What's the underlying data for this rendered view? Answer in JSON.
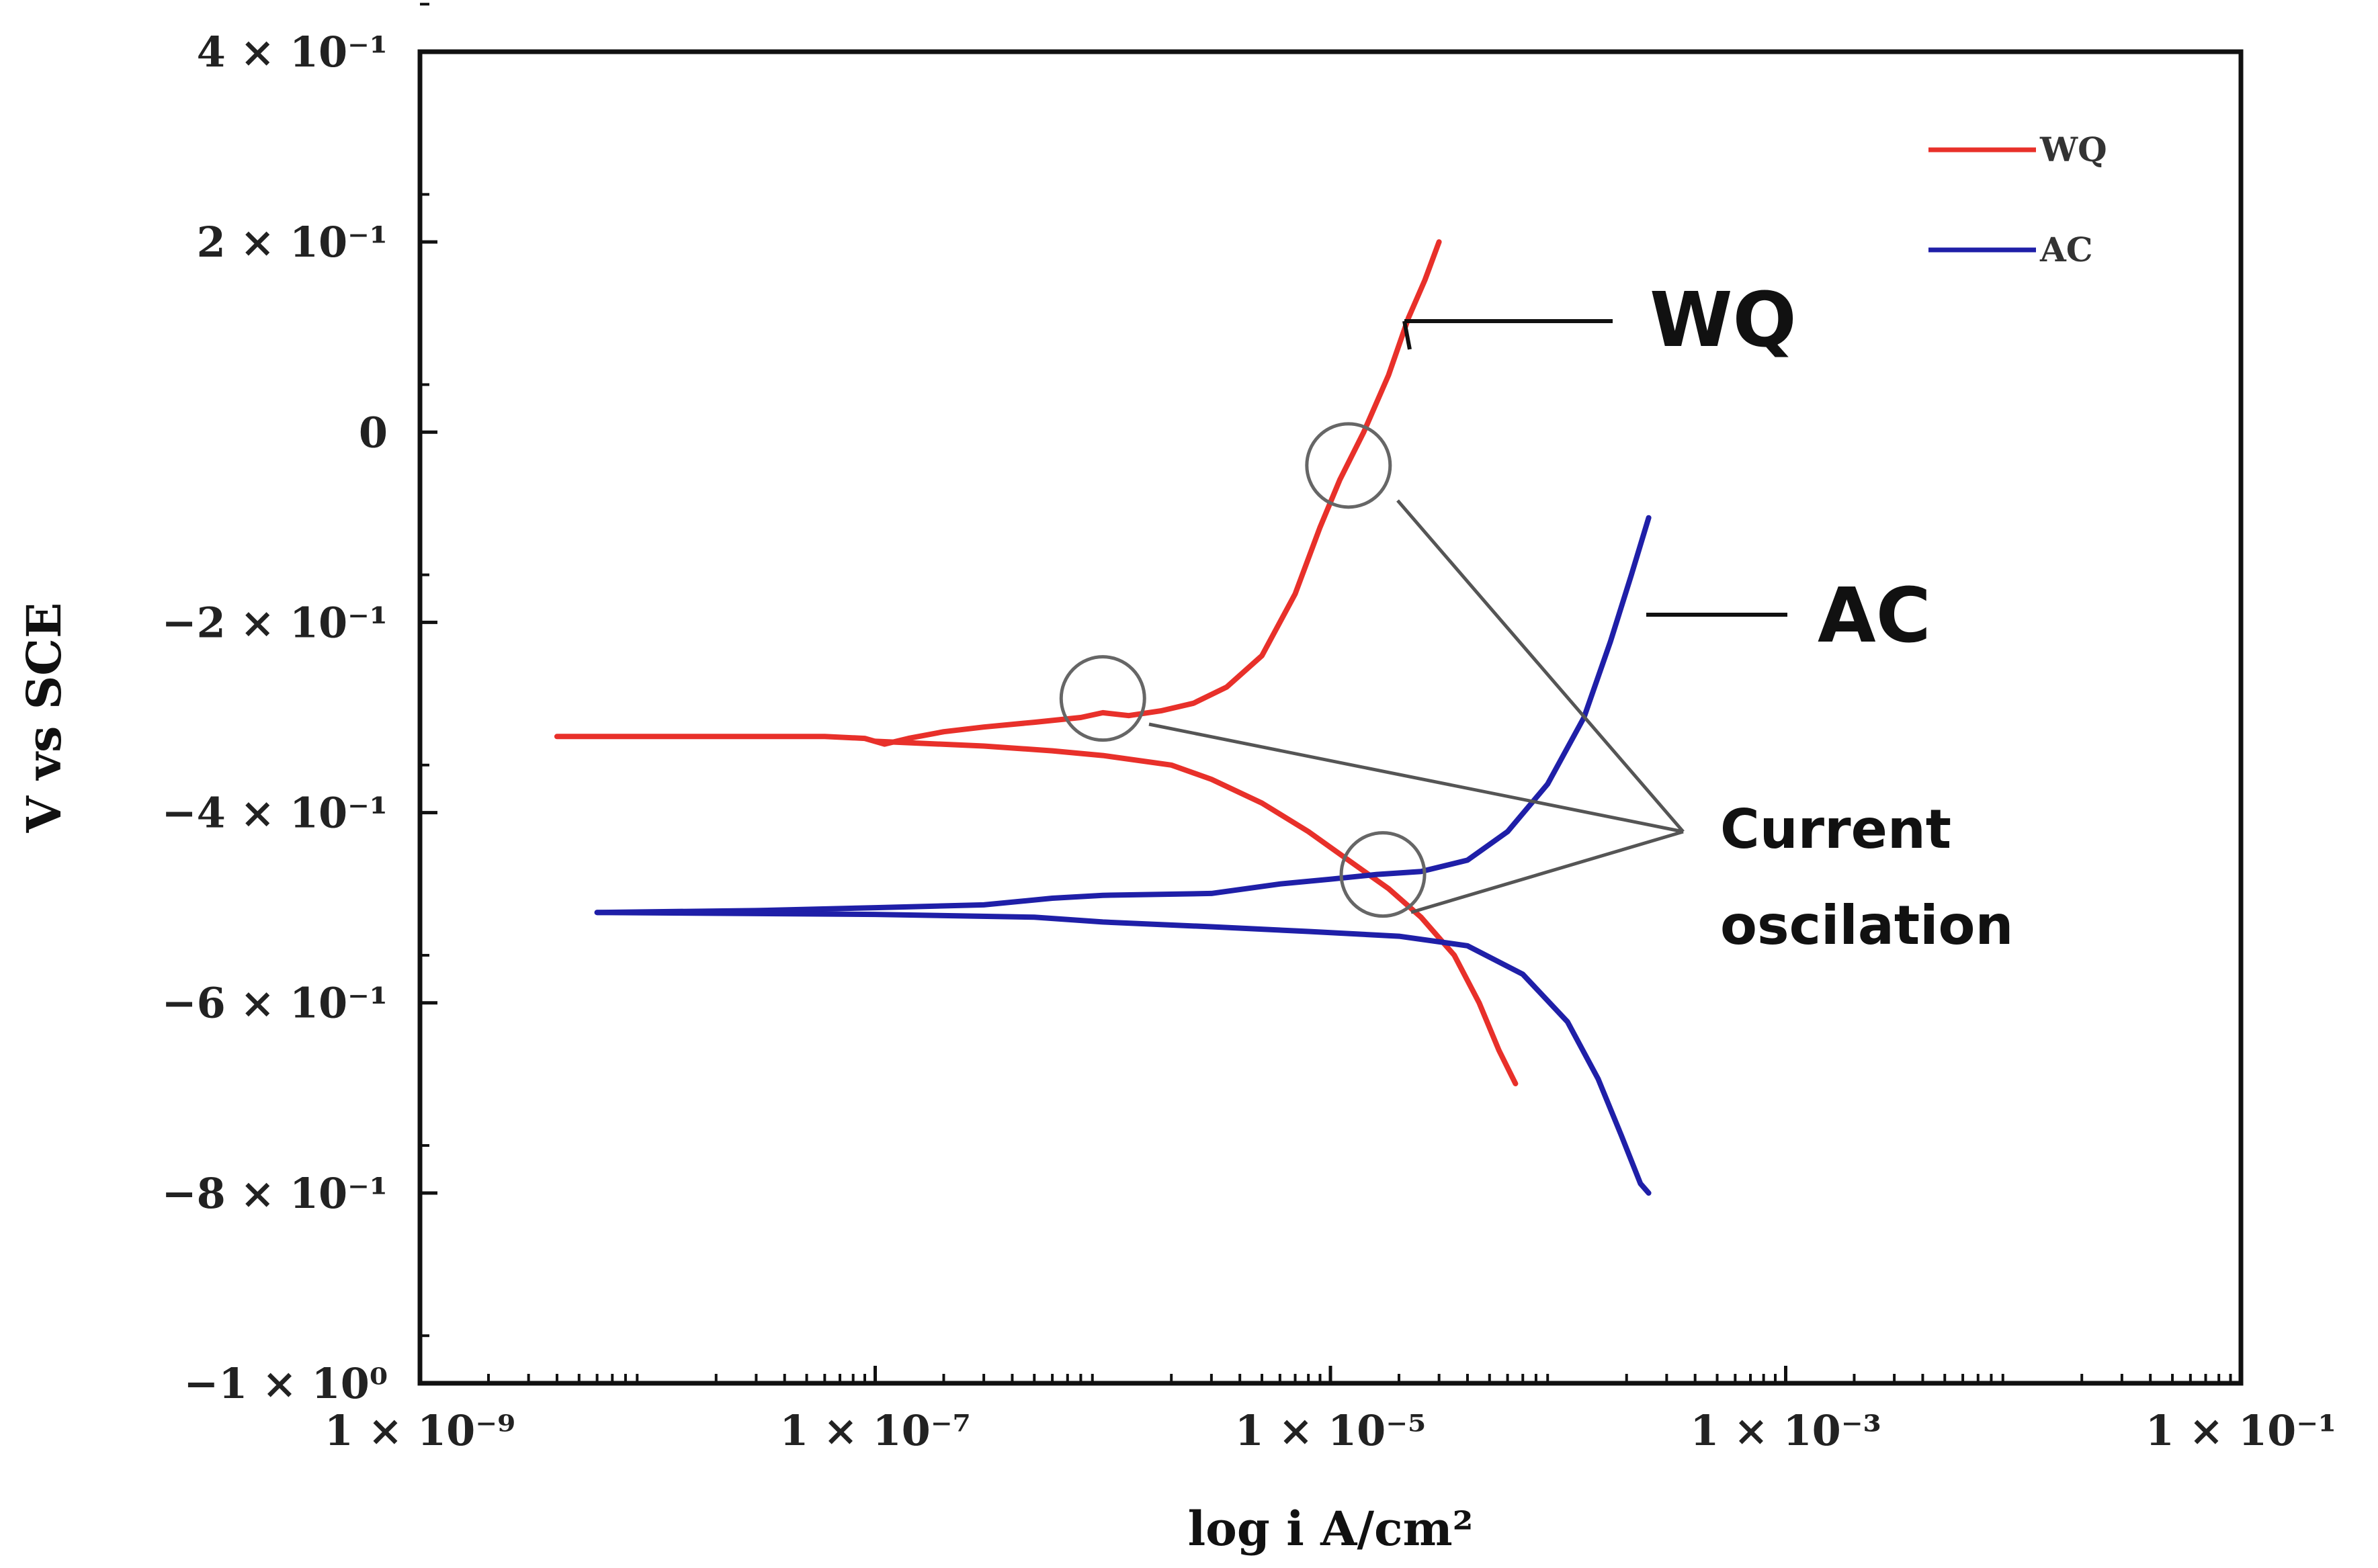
{
  "chart_data": {
    "type": "line",
    "title": "",
    "xlabel": "log i A/cm²",
    "ylabel": "V vs SCE",
    "xscale": "log",
    "xlim": [
      1e-09,
      0.1
    ],
    "ylim": [
      -1.0,
      0.4
    ],
    "x_tick_labels": [
      "1 × 10⁻⁹",
      "1 × 10⁻⁷",
      "1 × 10⁻⁵",
      "1 × 10⁻³",
      "1 × 10⁻¹"
    ],
    "x_tick_values": [
      1e-09,
      1e-07,
      1e-05,
      0.001,
      0.1
    ],
    "y_tick_labels": [
      "4 × 10⁻¹",
      "2 × 10⁻¹",
      "0",
      "−2 × 10⁻¹",
      "−4 × 10⁻¹",
      "−6 × 10⁻¹",
      "−8 × 10⁻¹",
      "−1 × 10⁰"
    ],
    "y_tick_values": [
      0.4,
      0.2,
      0.0,
      -0.2,
      -0.4,
      -0.6,
      -0.8,
      -1.0
    ],
    "legend": {
      "position": "top-right",
      "entries": [
        "WQ",
        "AC"
      ]
    },
    "grid": false,
    "series": [
      {
        "name": "WQ",
        "color": "#e8302a",
        "anodic": [
          [
            4e-09,
            -0.32
          ],
          [
            2e-08,
            -0.32
          ],
          [
            6e-08,
            -0.32
          ],
          [
            9e-08,
            -0.322
          ],
          [
            1.1e-07,
            -0.328
          ],
          [
            1.4e-07,
            -0.322
          ],
          [
            2e-07,
            -0.315
          ],
          [
            3e-07,
            -0.31
          ],
          [
            5e-07,
            -0.305
          ],
          [
            8e-07,
            -0.3
          ],
          [
            1e-06,
            -0.295
          ],
          [
            1.3e-06,
            -0.298
          ],
          [
            1.8e-06,
            -0.293
          ],
          [
            2.5e-06,
            -0.285
          ],
          [
            3.5e-06,
            -0.268
          ],
          [
            5e-06,
            -0.235
          ],
          [
            7e-06,
            -0.17
          ],
          [
            9e-06,
            -0.1
          ],
          [
            1.1e-05,
            -0.05
          ],
          [
            1.4e-05,
            0.0
          ],
          [
            1.8e-05,
            0.06
          ],
          [
            2.2e-05,
            0.12
          ],
          [
            2.6e-05,
            0.16
          ],
          [
            3e-05,
            0.2
          ]
        ],
        "cathodic": [
          [
            1e-07,
            -0.325
          ],
          [
            3e-07,
            -0.33
          ],
          [
            6e-07,
            -0.335
          ],
          [
            1e-06,
            -0.34
          ],
          [
            2e-06,
            -0.35
          ],
          [
            3e-06,
            -0.365
          ],
          [
            5e-06,
            -0.39
          ],
          [
            8e-06,
            -0.42
          ],
          [
            1.2e-05,
            -0.45
          ],
          [
            1.8e-05,
            -0.48
          ],
          [
            2.5e-05,
            -0.51
          ],
          [
            3.5e-05,
            -0.55
          ],
          [
            4.5e-05,
            -0.6
          ],
          [
            5.5e-05,
            -0.65
          ],
          [
            6.5e-05,
            -0.685
          ]
        ]
      },
      {
        "name": "AC",
        "color": "#1f1fa8",
        "anodic": [
          [
            6e-09,
            -0.505
          ],
          [
            3e-08,
            -0.503
          ],
          [
            1e-07,
            -0.5
          ],
          [
            3e-07,
            -0.497
          ],
          [
            6e-07,
            -0.49
          ],
          [
            1e-06,
            -0.487
          ],
          [
            3e-06,
            -0.485
          ],
          [
            6e-06,
            -0.475
          ],
          [
            1e-05,
            -0.47
          ],
          [
            1.6e-05,
            -0.465
          ],
          [
            2.5e-05,
            -0.462
          ],
          [
            4e-05,
            -0.45
          ],
          [
            6e-05,
            -0.42
          ],
          [
            9e-05,
            -0.37
          ],
          [
            0.00013,
            -0.3
          ],
          [
            0.00017,
            -0.22
          ],
          [
            0.00021,
            -0.15
          ],
          [
            0.00025,
            -0.09
          ]
        ],
        "cathodic": [
          [
            6e-09,
            -0.505
          ],
          [
            1e-07,
            -0.507
          ],
          [
            5e-07,
            -0.51
          ],
          [
            1e-06,
            -0.515
          ],
          [
            3e-06,
            -0.52
          ],
          [
            8e-06,
            -0.525
          ],
          [
            2e-05,
            -0.53
          ],
          [
            4e-05,
            -0.54
          ],
          [
            7e-05,
            -0.57
          ],
          [
            0.00011,
            -0.62
          ],
          [
            0.00015,
            -0.68
          ],
          [
            0.00019,
            -0.74
          ],
          [
            0.00023,
            -0.79
          ],
          [
            0.00025,
            -0.8
          ]
        ]
      }
    ],
    "annotations": {
      "wq_label": "WQ",
      "ac_label": "AC",
      "oscillation_line1": "Current",
      "oscillation_line2": "oscilation",
      "circles": [
        {
          "x": 1.2e-05,
          "y": -0.035
        },
        {
          "x": 1e-06,
          "y": -0.28
        },
        {
          "x": 1.7e-05,
          "y": -0.465
        }
      ]
    }
  }
}
